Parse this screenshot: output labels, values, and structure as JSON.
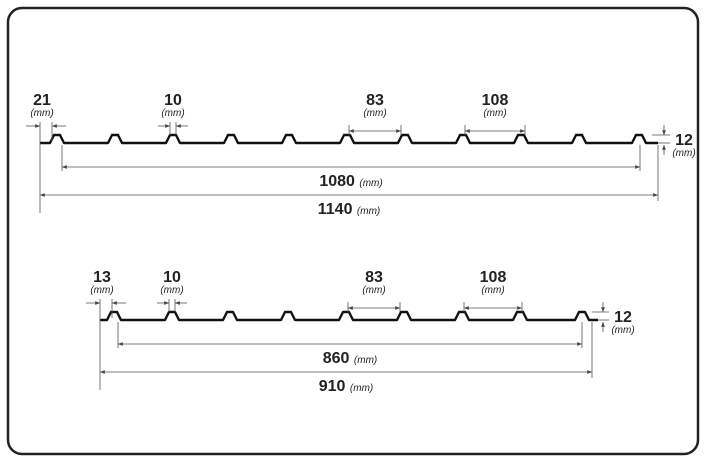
{
  "profiles": [
    {
      "edge": {
        "value": "21",
        "unit": "(mm)"
      },
      "rib_top": {
        "value": "10",
        "unit": "(mm)"
      },
      "pitch_small": {
        "value": "83",
        "unit": "(mm)"
      },
      "pitch_large": {
        "value": "108",
        "unit": "(mm)"
      },
      "height": {
        "value": "12",
        "unit": "(mm)"
      },
      "inner_width": {
        "value": "1080",
        "unit": "(mm)"
      },
      "total_width": {
        "value": "1140",
        "unit": "(mm)"
      }
    },
    {
      "edge": {
        "value": "13",
        "unit": "(mm)"
      },
      "rib_top": {
        "value": "10",
        "unit": "(mm)"
      },
      "pitch_small": {
        "value": "83",
        "unit": "(mm)"
      },
      "pitch_large": {
        "value": "108",
        "unit": "(mm)"
      },
      "height": {
        "value": "12",
        "unit": "(mm)"
      },
      "inner_width": {
        "value": "860",
        "unit": "(mm)"
      },
      "total_width": {
        "value": "910",
        "unit": "(mm)"
      }
    }
  ]
}
